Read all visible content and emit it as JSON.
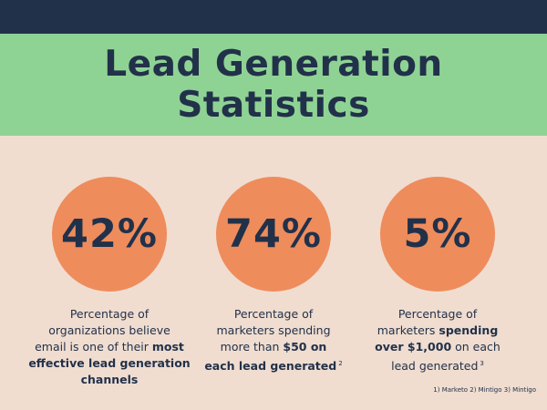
{
  "title": {
    "line1": "Lead Generation",
    "line2": "Statistics"
  },
  "stats": [
    {
      "value": "42%",
      "parts": [
        {
          "t": "Percentage of",
          "b": false,
          "br": true
        },
        {
          "t": "organizations believe",
          "b": false,
          "br": true
        },
        {
          "t": "email is one of their ",
          "b": false,
          "br": false
        },
        {
          "t": "most",
          "b": true,
          "br": true
        },
        {
          "t": "effective lead generation",
          "b": true,
          "br": true
        },
        {
          "t": "channels",
          "b": true,
          "br": false
        }
      ],
      "footnote": ""
    },
    {
      "value": "74%",
      "parts": [
        {
          "t": "Percentage of",
          "b": false,
          "br": true
        },
        {
          "t": "marketers spending",
          "b": false,
          "br": true
        },
        {
          "t": "more than ",
          "b": false,
          "br": false
        },
        {
          "t": "$50 on",
          "b": true,
          "br": true
        },
        {
          "t": "each lead generated",
          "b": true,
          "br": false
        }
      ],
      "footnote": "2"
    },
    {
      "value": "5%",
      "parts": [
        {
          "t": "Percentage of",
          "b": false,
          "br": true
        },
        {
          "t": "marketers ",
          "b": false,
          "br": false
        },
        {
          "t": "spending",
          "b": true,
          "br": true
        },
        {
          "t": "over $1,000",
          "b": true,
          "br": false
        },
        {
          "t": " on each",
          "b": false,
          "br": true
        },
        {
          "t": "lead generated",
          "b": false,
          "br": false
        }
      ],
      "footnote": "3"
    }
  ],
  "sources": "1) Marketo 2) Mintigo 3) Mintigo",
  "colors": {
    "navy": "#22314a",
    "green": "#8fd394",
    "orange": "#ef8c5c",
    "background": "#f0ddd0"
  }
}
